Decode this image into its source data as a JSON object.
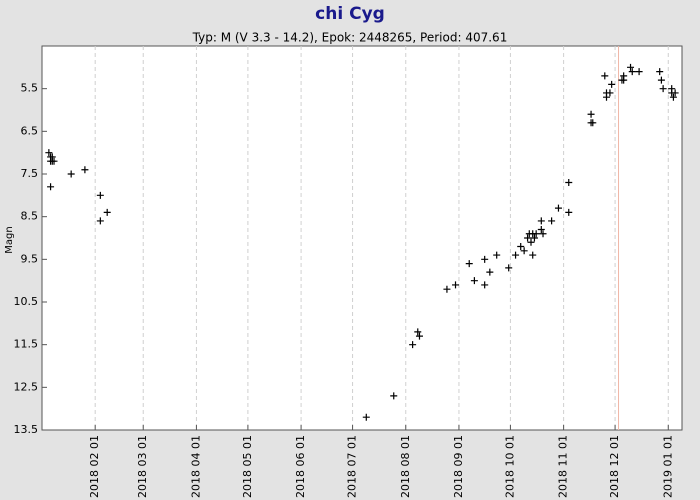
{
  "chart_data": {
    "type": "scatter",
    "title": "chi Cyg",
    "subtitle": "Typ: M (V 3.3 - 14.2), Epok: 2448265, Period: 407.61",
    "y_label": "Magn",
    "marker": "+",
    "color": "#000000",
    "grid": true,
    "x": [
      "2018-01-05",
      "2018-01-06",
      "2018-01-07",
      "2018-01-07",
      "2018-01-06",
      "2018-01-08",
      "2018-01-06",
      "2018-01-18",
      "2018-01-26",
      "2018-02-04",
      "2018-02-04",
      "2018-02-08",
      "2018-07-09",
      "2018-07-25",
      "2018-08-05",
      "2018-08-08",
      "2018-08-09",
      "2018-08-25",
      "2018-08-30",
      "2018-09-07",
      "2018-09-10",
      "2018-09-16",
      "2018-09-16",
      "2018-09-19",
      "2018-09-23",
      "2018-09-30",
      "2018-10-04",
      "2018-10-07",
      "2018-10-09",
      "2018-10-11",
      "2018-10-12",
      "2018-10-13",
      "2018-10-14",
      "2018-10-14",
      "2018-10-15",
      "2018-10-16",
      "2018-10-19",
      "2018-10-19",
      "2018-10-20",
      "2018-10-25",
      "2018-10-29",
      "2018-11-04",
      "2018-11-04",
      "2018-11-17",
      "2018-11-17",
      "2018-11-18",
      "2018-11-26",
      "2018-11-25",
      "2018-11-26",
      "2018-11-28",
      "2018-11-29",
      "2018-12-05",
      "2018-12-06",
      "2018-12-06",
      "2018-12-10",
      "2018-12-11",
      "2018-12-15",
      "2018-12-27",
      "2018-12-28",
      "2018-12-29",
      "2019-01-03",
      "2019-01-03",
      "2019-01-04",
      "2019-01-05"
    ],
    "values": [
      7.0,
      7.1,
      7.1,
      7.2,
      7.2,
      7.2,
      7.8,
      7.5,
      7.4,
      8.0,
      8.6,
      8.4,
      13.2,
      12.7,
      11.5,
      11.2,
      11.3,
      10.2,
      10.1,
      9.6,
      10.0,
      9.5,
      10.1,
      9.8,
      9.4,
      9.7,
      9.4,
      9.2,
      9.3,
      9.0,
      8.9,
      9.1,
      9.4,
      8.9,
      9.0,
      8.9,
      8.8,
      8.6,
      8.9,
      8.6,
      8.3,
      7.7,
      8.4,
      6.1,
      6.3,
      6.3,
      5.7,
      5.2,
      5.6,
      5.6,
      5.4,
      5.3,
      5.2,
      5.3,
      5.0,
      5.1,
      5.1,
      5.1,
      5.3,
      5.5,
      5.5,
      5.6,
      5.7,
      5.6
    ],
    "ylim": [
      13.5,
      4.5
    ],
    "yticks": [
      5.5,
      6.5,
      7.5,
      8.5,
      9.5,
      10.5,
      11.5,
      12.5,
      13.5
    ],
    "xlim": [
      "2018-01-01",
      "2019-01-09"
    ],
    "xticks": [
      {
        "value": "2018-02-01",
        "label": "2018 02 01"
      },
      {
        "value": "2018-03-01",
        "label": "2018 03 01"
      },
      {
        "value": "2018-04-01",
        "label": "2018 04 01"
      },
      {
        "value": "2018-05-01",
        "label": "2018 05 01"
      },
      {
        "value": "2018-06-01",
        "label": "2018 06 01"
      },
      {
        "value": "2018-07-01",
        "label": "2018 07 01"
      },
      {
        "value": "2018-08-01",
        "label": "2018 08 01"
      },
      {
        "value": "2018-09-01",
        "label": "2018 09 01"
      },
      {
        "value": "2018-10-01",
        "label": "2018 10 01"
      },
      {
        "value": "2018-11-01",
        "label": "2018 11 01"
      },
      {
        "value": "2018-12-01",
        "label": "2018 12 01"
      },
      {
        "value": "2019-01-01",
        "label": "2019 01 01"
      }
    ],
    "marker_line": {
      "x": "2018-12-03",
      "color": "#f0b8a8"
    }
  }
}
